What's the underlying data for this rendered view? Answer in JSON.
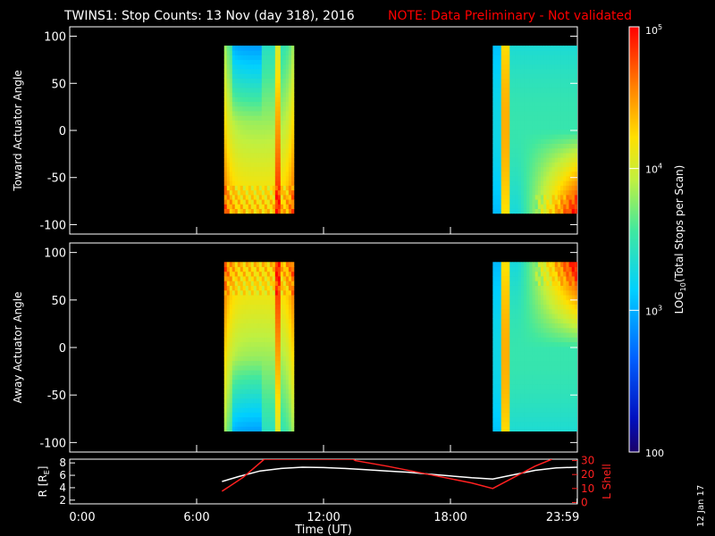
{
  "title": "TWINS1: Stop Counts: 13 Nov (day 318), 2016",
  "note": "NOTE: Data Preliminary - Not validated",
  "date_stamp": "12 Jan 17",
  "colors": {
    "background": "#000000",
    "text": "#ffffff",
    "note": "#ff0000",
    "r_line": "#ffffff",
    "lshell_line": "#ff2020"
  },
  "chart_data": [
    {
      "type": "heatmap",
      "panel": "toward",
      "ylabel": "Toward Actuator Angle",
      "ylim": [
        -110,
        110
      ],
      "yticks": [
        "100",
        "50",
        "0",
        "-50",
        "-100"
      ],
      "ytick_values": [
        100,
        50,
        0,
        -50,
        -100
      ],
      "xlim": [
        0,
        24
      ],
      "data_intervals_hours": [
        [
          7.3,
          10.6
        ],
        [
          20.0,
          24.0
        ]
      ],
      "angle_range": [
        -88,
        90
      ],
      "colorscale": "log10 counts, blue (low) to red (high)"
    },
    {
      "type": "heatmap",
      "panel": "away",
      "ylabel": "Away Actuator Angle",
      "ylim": [
        -110,
        110
      ],
      "yticks": [
        "100",
        "50",
        "0",
        "-50",
        "-100"
      ],
      "ytick_values": [
        100,
        50,
        0,
        -50,
        -100
      ],
      "xlim": [
        0,
        24
      ],
      "data_intervals_hours": [
        [
          7.3,
          10.6
        ],
        [
          20.0,
          24.0
        ]
      ],
      "angle_range": [
        -88,
        90
      ],
      "colorscale": "log10 counts, blue (low) to red (high)"
    },
    {
      "type": "line",
      "panel": "orbit",
      "ylabel_left": "R [RE]",
      "ylabel_right": "L Shell",
      "yticks_left": [
        "8",
        "6",
        "4",
        "2"
      ],
      "yticks_left_values": [
        8,
        6,
        4,
        2
      ],
      "ylim_left": [
        1.4,
        8.6
      ],
      "yticks_right": [
        "30",
        "20",
        "10",
        "0"
      ],
      "yticks_right_values": [
        30,
        20,
        10,
        0
      ],
      "ylim_right": [
        -1,
        31
      ],
      "xlim": [
        0,
        24
      ],
      "xticks": [
        "0:00",
        "6:00",
        "12:00",
        "18:00",
        "23:59"
      ],
      "xtick_values": [
        0,
        6,
        12,
        18,
        23.983
      ],
      "xlabel": "Time (UT)",
      "series": [
        {
          "axis": "left",
          "x": [
            7.2,
            8.0,
            9.0,
            10.0,
            11.0,
            12.0,
            13.0,
            14.0,
            15.0,
            16.0,
            17.0,
            18.0,
            19.0,
            20.0,
            21.0,
            22.0,
            23.0,
            24.0
          ],
          "y": [
            5.0,
            5.8,
            6.7,
            7.1,
            7.3,
            7.25,
            7.1,
            6.9,
            6.7,
            6.5,
            6.2,
            5.9,
            5.6,
            5.4,
            6.1,
            6.8,
            7.2,
            7.3
          ]
        },
        {
          "axis": "right",
          "x": [
            7.2,
            8.2,
            9.2,
            9.3,
            13.4,
            13.5,
            15.0,
            17.0,
            19.0,
            20.0,
            21.0,
            22.0,
            22.8
          ],
          "y": [
            8,
            18,
            31,
            31,
            31,
            30,
            26,
            20,
            14,
            10,
            18,
            26,
            31
          ]
        }
      ]
    },
    {
      "type": "heatmap",
      "panel": "colorbar",
      "ylabel": "LOG10(Total Stops per Scan)",
      "tick_labels": [
        "10^5",
        "10^4",
        "10^3",
        "100"
      ],
      "tick_values": [
        5,
        4,
        3,
        2
      ],
      "range": [
        2,
        5
      ]
    }
  ]
}
